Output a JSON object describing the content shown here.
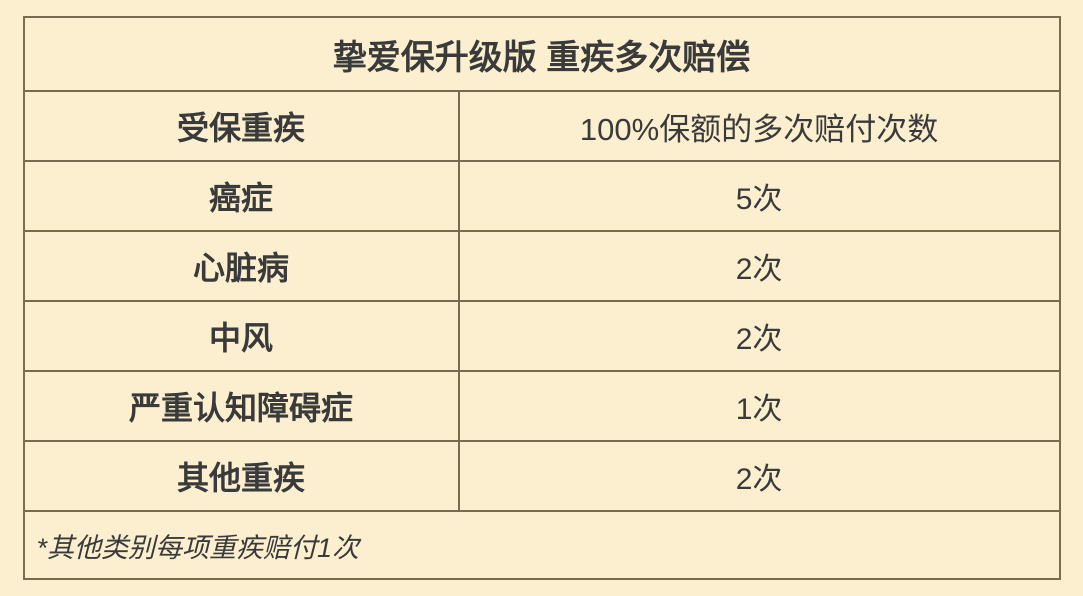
{
  "table": {
    "title": "挚爱保升级版 重疾多次赔偿",
    "columns": [
      "受保重疾",
      "100%保额的多次赔付次数"
    ],
    "rows": [
      {
        "label": "癌症",
        "value": "5次"
      },
      {
        "label": "心脏病",
        "value": "2次"
      },
      {
        "label": "中风",
        "value": "2次"
      },
      {
        "label": "严重认知障碍症",
        "value": "1次"
      },
      {
        "label": "其他重疾",
        "value": "2次"
      }
    ],
    "footnote": "*其他类别每项重疾赔付1次",
    "colors": {
      "background": "#fbefd0",
      "border": "#7a6a50",
      "text": "#3a3a3a"
    },
    "col_left_width_pct": 42
  }
}
